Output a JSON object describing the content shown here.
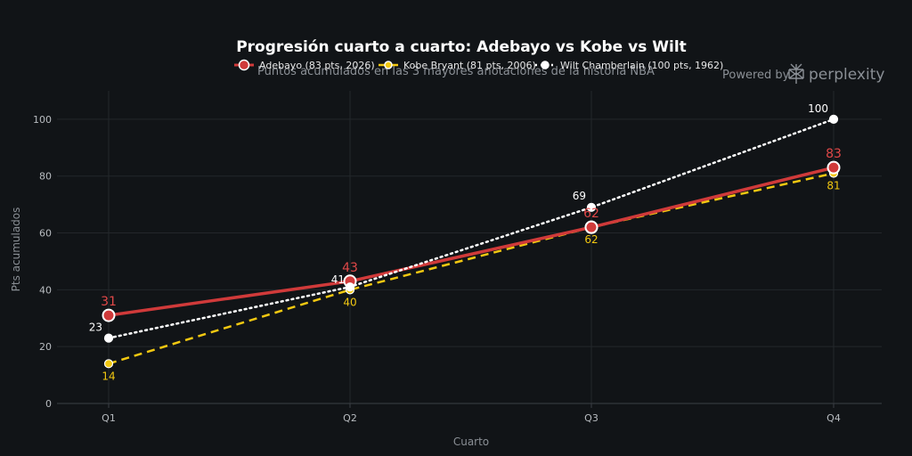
{
  "watermark": {
    "prefix": "Powered by",
    "brand": "perplexity",
    "icon": "perplexity-logo-icon"
  },
  "chart_data": {
    "type": "line",
    "title": "Progresión cuarto a cuarto: Adebayo vs Kobe vs Wilt",
    "subtitle": "Puntos acumulados en las 3 mayores anotaciones de la historia NBA",
    "xlabel": "Cuarto",
    "ylabel": "Pts acumulados",
    "categories": [
      "Q1",
      "Q2",
      "Q3",
      "Q4"
    ],
    "ylim": [
      0,
      110
    ],
    "yticks": [
      0,
      20,
      40,
      60,
      80,
      100
    ],
    "grid": true,
    "legend_position": "top-center",
    "series": [
      {
        "name": "Adebayo (83 pts, 2026)",
        "values": [
          31,
          43,
          62,
          83
        ],
        "color": "#d03a3a",
        "style": "solid",
        "labels": [
          "31",
          "43",
          "62",
          "83"
        ]
      },
      {
        "name": "Kobe Bryant (81 pts, 2006)",
        "values": [
          14,
          40,
          62,
          81
        ],
        "color": "#f2c811",
        "style": "dashed",
        "labels": [
          "14",
          "40",
          "62",
          "81"
        ]
      },
      {
        "name": "Wilt Chamberlain (100 pts, 1962)",
        "values": [
          23,
          41,
          69,
          100
        ],
        "color": "#ffffff",
        "style": "dotted",
        "labels": [
          "23",
          "41",
          "69",
          "100"
        ]
      }
    ]
  },
  "colors": {
    "background": "#111417",
    "grid": "#23272b",
    "axis": "#3a3f44"
  }
}
